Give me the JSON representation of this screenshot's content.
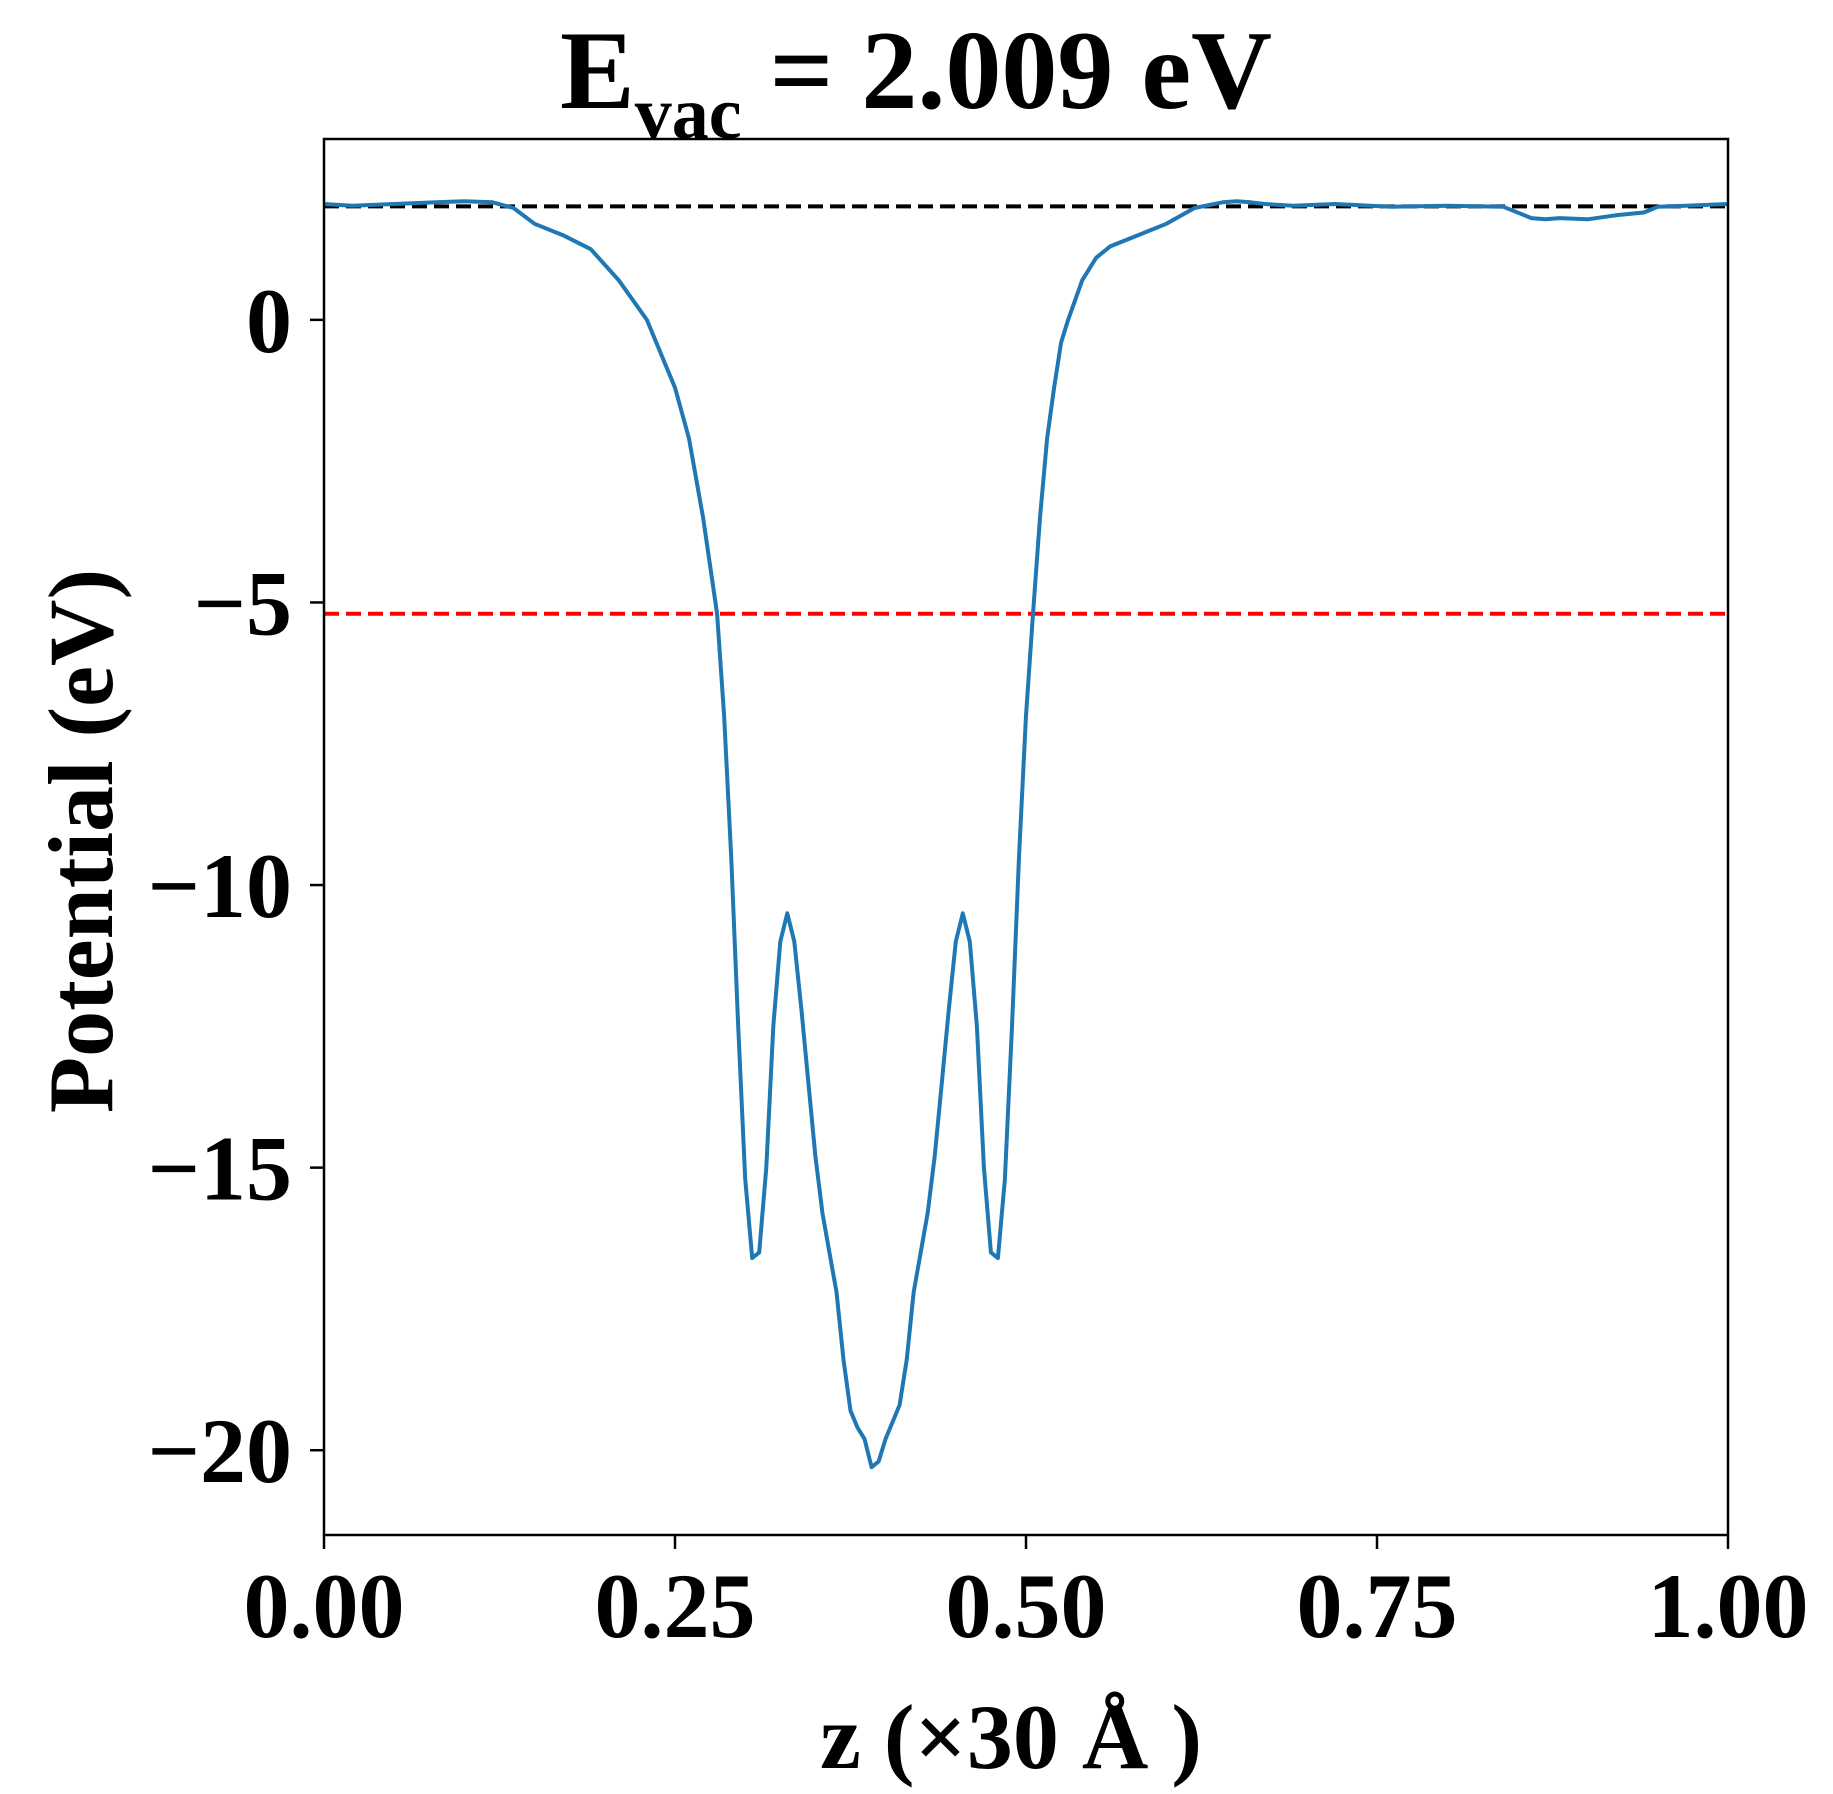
{
  "chart_data": {
    "type": "line",
    "title_main": "E",
    "title_sub": "vac",
    "title_rest": " = 2.009 eV",
    "xlabel": "z (×30 Å )",
    "ylabel": "Potential (eV)",
    "xlim": [
      0,
      1
    ],
    "ylim": [
      -21.5,
      3.2
    ],
    "xticks": [
      0,
      0.25,
      0.5,
      0.75,
      1.0
    ],
    "xtick_labels": [
      "0.00",
      "0.25",
      "0.50",
      "0.75",
      "1.00"
    ],
    "yticks": [
      0,
      -5,
      -10,
      -15,
      -20
    ],
    "ytick_labels": [
      "0",
      "−5",
      "−10",
      "−15",
      "−20"
    ],
    "grid": false,
    "reference_lines": [
      {
        "y": 2.009,
        "color": "#000000",
        "style": "dashed"
      },
      {
        "y": -5.2,
        "color": "#ff0000",
        "style": "dashed"
      }
    ],
    "series": [
      {
        "color": "#1f77b4",
        "x": [
          0.0,
          0.02,
          0.05,
          0.08,
          0.1,
          0.12,
          0.135,
          0.15,
          0.17,
          0.19,
          0.21,
          0.23,
          0.25,
          0.26,
          0.27,
          0.28,
          0.285,
          0.29,
          0.295,
          0.3,
          0.305,
          0.31,
          0.315,
          0.32,
          0.325,
          0.33,
          0.335,
          0.34,
          0.345,
          0.35,
          0.355,
          0.36,
          0.365,
          0.37,
          0.375,
          0.38,
          0.385,
          0.39,
          0.395,
          0.4,
          0.405,
          0.41,
          0.415,
          0.42,
          0.425,
          0.43,
          0.435,
          0.44,
          0.445,
          0.45,
          0.455,
          0.46,
          0.465,
          0.47,
          0.475,
          0.48,
          0.485,
          0.49,
          0.495,
          0.5,
          0.505,
          0.51,
          0.515,
          0.52,
          0.525,
          0.53,
          0.54,
          0.55,
          0.56,
          0.58,
          0.6,
          0.62,
          0.64,
          0.65,
          0.66,
          0.67,
          0.69,
          0.72,
          0.76,
          0.8,
          0.84,
          0.86,
          0.87,
          0.88,
          0.9,
          0.92,
          0.94,
          0.95,
          0.97,
          1.0
        ],
        "y": [
          2.05,
          2.02,
          2.05,
          2.08,
          2.1,
          2.08,
          1.98,
          1.7,
          1.5,
          1.25,
          0.7,
          0.0,
          -1.2,
          -2.1,
          -3.5,
          -5.2,
          -7.0,
          -9.5,
          -12.5,
          -15.2,
          -16.6,
          -16.5,
          -15.0,
          -12.5,
          -11.0,
          -10.5,
          -11.0,
          -12.2,
          -13.5,
          -14.8,
          -15.8,
          -16.5,
          -17.2,
          -18.4,
          -19.3,
          -19.6,
          -19.8,
          -20.3,
          -20.2,
          -19.8,
          -19.5,
          -19.2,
          -18.4,
          -17.2,
          -16.5,
          -15.8,
          -14.8,
          -13.5,
          -12.2,
          -11.0,
          -10.5,
          -11.0,
          -12.5,
          -15.0,
          -16.5,
          -16.6,
          -15.2,
          -12.5,
          -9.5,
          -7.0,
          -5.2,
          -3.5,
          -2.1,
          -1.2,
          -0.4,
          0.0,
          0.7,
          1.1,
          1.3,
          1.5,
          1.7,
          1.98,
          2.08,
          2.1,
          2.08,
          2.05,
          2.02,
          2.05,
          2.0,
          2.02,
          2.0,
          1.8,
          1.78,
          1.8,
          1.78,
          1.85,
          1.9,
          2.0,
          2.02,
          2.05
        ]
      }
    ]
  }
}
